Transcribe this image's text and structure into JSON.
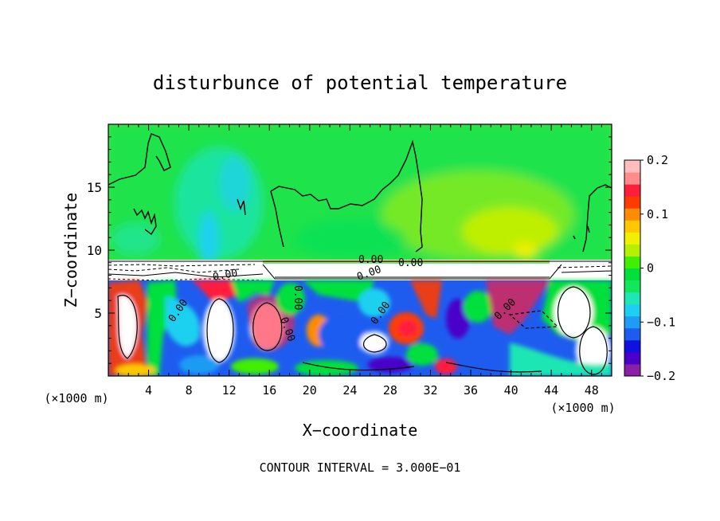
{
  "chart_data": {
    "type": "heatmap",
    "title": "disturbunce of potential temperature",
    "xlabel": "X−coordinate",
    "ylabel": "Z−coordinate",
    "x_unit_left": "(×1000 m)",
    "x_unit_right": "(×1000 m)",
    "footer": "CONTOUR INTERVAL = 3.000E−01",
    "xlim": [
      0,
      50
    ],
    "ylim": [
      0,
      20
    ],
    "xticks": [
      4,
      8,
      12,
      16,
      20,
      24,
      28,
      32,
      36,
      40,
      44,
      48
    ],
    "yticks": [
      5,
      10,
      15
    ],
    "colorbar": {
      "range": [
        -0.2,
        0.2
      ],
      "ticks": [
        {
          "value": 0.2,
          "label": "0.2"
        },
        {
          "value": 0.1,
          "label": "0.1"
        },
        {
          "value": 0,
          "label": "0"
        },
        {
          "value": -0.1,
          "label": "−0.1"
        },
        {
          "value": -0.2,
          "label": "−0.2"
        }
      ],
      "colors": [
        "#8b1fa8",
        "#4a00c8",
        "#1010e0",
        "#1e5cf0",
        "#1f9bf5",
        "#1ed0f0",
        "#1ee6b4",
        "#14e65a",
        "#00e03c",
        "#40f000",
        "#b4f000",
        "#f0f000",
        "#ffc800",
        "#ff8c00",
        "#ff3c00",
        "#ff1e3c",
        "#ff8c8c",
        "#ffbebe"
      ]
    },
    "contour_labels": [
      "0.00",
      "0.00",
      "0.00",
      "0.00",
      "0.00",
      "0.00",
      "0.00",
      "0.00",
      "0.00"
    ]
  }
}
